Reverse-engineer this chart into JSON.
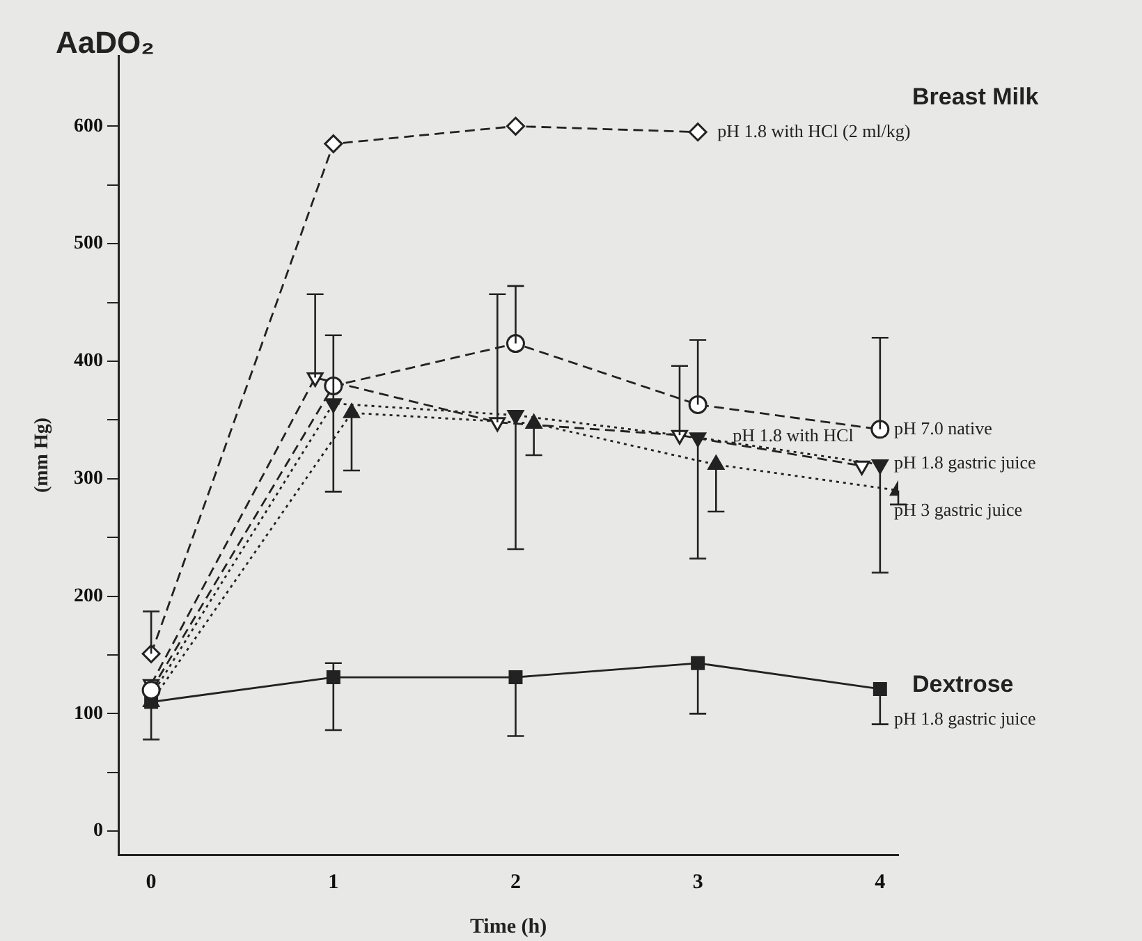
{
  "chart_data": {
    "type": "line",
    "title": "AaDO₂",
    "xlabel": "Time (h)",
    "ylabel": "(mm Hg)",
    "xlim": [
      -0.18,
      4.1
    ],
    "xticks": [
      0,
      1,
      2,
      3,
      4
    ],
    "ylim": [
      -20,
      660
    ],
    "yticks": [
      0,
      {
        "value": 50,
        "label": null
      },
      100,
      {
        "value": 150,
        "label": null
      },
      200,
      {
        "value": 250,
        "label": null
      },
      300,
      {
        "value": 350,
        "label": null
      },
      400,
      {
        "value": 450,
        "label": null
      },
      500,
      {
        "value": 550,
        "label": null
      },
      600
    ],
    "grid": false,
    "legend": false,
    "annotations": [
      "Breast Milk",
      "Dextrose"
    ],
    "series": [
      {
        "name": "pH 1.8 with HCl (2 ml/kg)",
        "color": "#222222",
        "marker": "diamond",
        "line_style": "dashed",
        "x": [
          0,
          1,
          2,
          3
        ],
        "values": [
          151,
          585,
          600,
          595
        ],
        "errors": [
          [
            151,
            187
          ],
          null,
          null,
          null
        ]
      },
      {
        "name": "pH 7.0 native",
        "color": "#222222",
        "marker": "circle",
        "line_style": "dashed",
        "x": [
          0,
          1,
          2,
          3,
          4
        ],
        "values": [
          120,
          379,
          415,
          363,
          342
        ],
        "errors": [
          null,
          [
            289,
            422
          ],
          [
            415,
            464
          ],
          [
            363,
            418
          ],
          [
            342,
            420
          ]
        ]
      },
      {
        "name": "pH 1.8 with HCl",
        "color": "#222222",
        "marker": "triangle_down",
        "line_style": "dashed",
        "x": [
          0,
          0.9,
          1.9,
          2.9,
          3.9
        ],
        "values": [
          125,
          386,
          348,
          337,
          311
        ],
        "errors": [
          null,
          [
            386,
            457
          ],
          [
            348,
            457
          ],
          [
            337,
            396
          ],
          null
        ]
      },
      {
        "name": "pH 1.8 gastric juice",
        "color": "#222222",
        "marker": "triangle_down",
        "line_style": "dotted",
        "x": [
          0,
          1,
          2,
          3,
          4
        ],
        "values": [
          115,
          364,
          354,
          335,
          312
        ],
        "errors": [
          null,
          null,
          [
            240,
            354
          ],
          [
            232,
            335
          ],
          [
            220,
            312
          ]
        ]
      },
      {
        "name": "pH 3 gastric juice",
        "color": "#222222",
        "marker": "triangle",
        "line_style": "dotted",
        "x": [
          0,
          1.1,
          2.1,
          3.1,
          4.1
        ],
        "values": [
          110,
          356,
          347,
          312,
          290
        ],
        "errors": [
          null,
          [
            307,
            356
          ],
          [
            320,
            347
          ],
          [
            272,
            312
          ],
          [
            278,
            290
          ]
        ]
      },
      {
        "name": "pH 1.8 gastric juice",
        "color": "#222222",
        "marker": "square",
        "line_style": "solid",
        "x": [
          0,
          1,
          2,
          3,
          4
        ],
        "values": [
          110,
          131,
          131,
          143,
          121
        ],
        "errors": [
          [
            78,
            110
          ],
          [
            86,
            143
          ],
          [
            81,
            131
          ],
          [
            100,
            143
          ],
          [
            91,
            121
          ]
        ]
      }
    ]
  }
}
